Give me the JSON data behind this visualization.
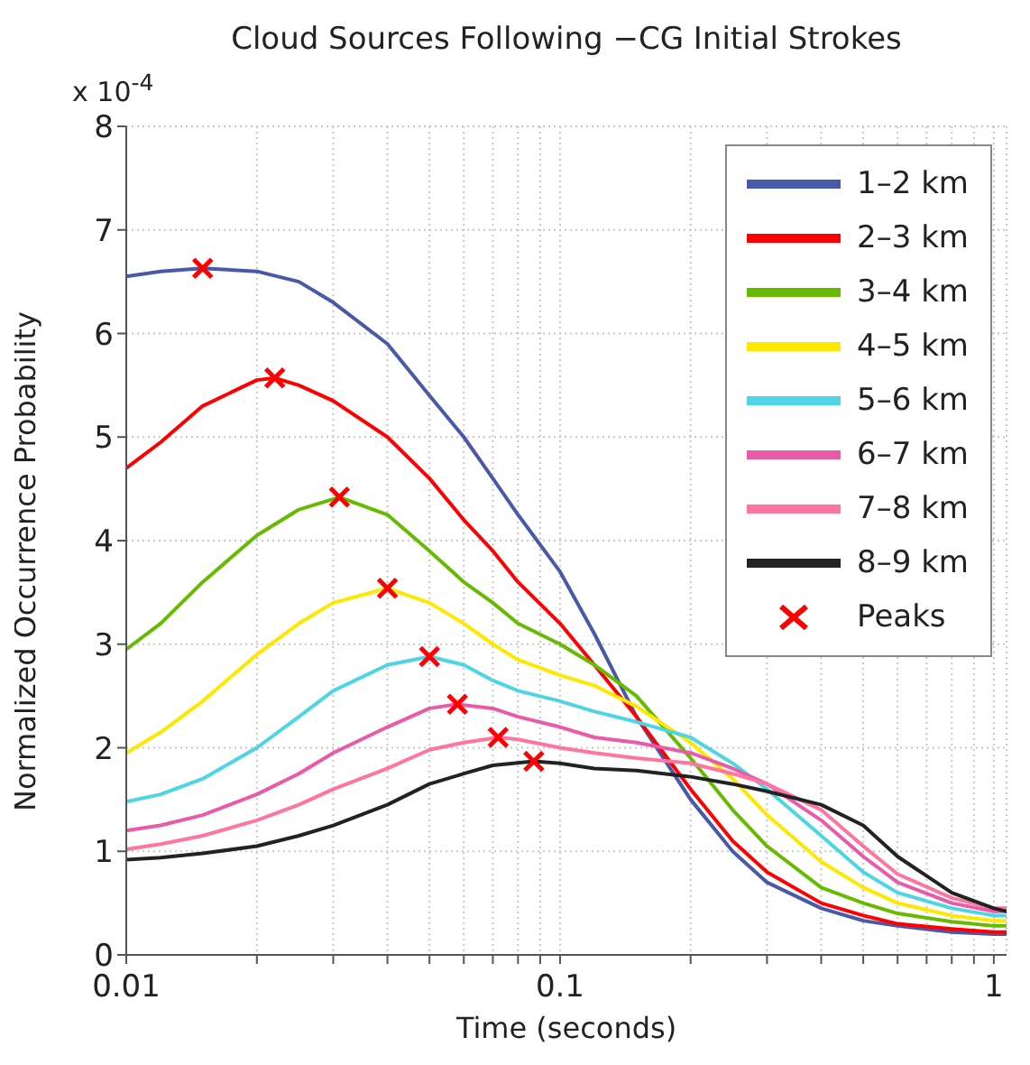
{
  "chart_data": {
    "type": "line",
    "title": "Cloud Sources Following −CG Initial Strokes",
    "xlabel": "Time (seconds)",
    "ylabel": "Normalized Occurrence Probability",
    "annotations": [
      "x 10$^{-4}$"
    ],
    "log": "x",
    "grid": true,
    "legend": "top right",
    "marker": "none",
    "line_style": "solid",
    "xlim": [
      0.01,
      1.07
    ],
    "xticks": [
      0.01,
      {
        "value": 0.02,
        "label": null
      },
      {
        "value": 0.03,
        "label": null
      },
      {
        "value": 0.04,
        "label": null
      },
      {
        "value": 0.05,
        "label": null
      },
      {
        "value": 0.06,
        "label": null
      },
      {
        "value": 0.07,
        "label": null
      },
      {
        "value": 0.08,
        "label": null
      },
      {
        "value": 0.09,
        "label": null
      },
      0.1,
      {
        "value": 0.2,
        "label": null
      },
      {
        "value": 0.3,
        "label": null
      },
      {
        "value": 0.4,
        "label": null
      },
      {
        "value": 0.5,
        "label": null
      },
      {
        "value": 0.6,
        "label": null
      },
      {
        "value": 0.7,
        "label": null
      },
      {
        "value": 0.8,
        "label": null
      },
      {
        "value": 0.9,
        "label": null
      },
      1
    ],
    "ylim": [
      0,
      8
    ],
    "yticks": [
      0,
      1,
      2,
      3,
      4,
      5,
      6,
      7,
      8
    ],
    "series": [
      {
        "name": "1–2 km",
        "color": "#4759a8",
        "x": [
          0.01,
          0.012,
          0.015,
          0.02,
          0.025,
          0.03,
          0.04,
          0.05,
          0.06,
          0.07,
          0.08,
          0.1,
          0.12,
          0.15,
          0.2,
          0.25,
          0.3,
          0.4,
          0.5,
          0.6,
          0.8,
          1.0,
          1.07
        ],
        "values": [
          6.55,
          6.6,
          6.63,
          6.6,
          6.5,
          6.3,
          5.9,
          5.4,
          5.0,
          4.6,
          4.25,
          3.7,
          3.1,
          2.3,
          1.5,
          1.0,
          0.7,
          0.45,
          0.33,
          0.28,
          0.22,
          0.2,
          0.2
        ]
      },
      {
        "name": "2–3 km",
        "color": "#ff0000",
        "x": [
          0.01,
          0.012,
          0.015,
          0.02,
          0.022,
          0.025,
          0.03,
          0.04,
          0.05,
          0.06,
          0.07,
          0.08,
          0.1,
          0.12,
          0.15,
          0.2,
          0.25,
          0.3,
          0.4,
          0.5,
          0.6,
          0.8,
          1.0,
          1.07
        ],
        "values": [
          4.7,
          4.95,
          5.3,
          5.55,
          5.57,
          5.5,
          5.35,
          5.0,
          4.6,
          4.2,
          3.9,
          3.6,
          3.2,
          2.8,
          2.3,
          1.6,
          1.1,
          0.8,
          0.5,
          0.38,
          0.3,
          0.25,
          0.22,
          0.22
        ]
      },
      {
        "name": "3–4 km",
        "color": "#66bb00",
        "x": [
          0.01,
          0.012,
          0.015,
          0.02,
          0.025,
          0.031,
          0.04,
          0.05,
          0.06,
          0.07,
          0.08,
          0.1,
          0.12,
          0.15,
          0.2,
          0.25,
          0.3,
          0.4,
          0.5,
          0.6,
          0.8,
          1.0,
          1.07
        ],
        "values": [
          2.95,
          3.2,
          3.6,
          4.05,
          4.3,
          4.42,
          4.25,
          3.9,
          3.6,
          3.4,
          3.2,
          3.0,
          2.8,
          2.5,
          1.9,
          1.4,
          1.05,
          0.65,
          0.5,
          0.4,
          0.32,
          0.28,
          0.28
        ]
      },
      {
        "name": "4–5 km",
        "color": "#ffe800",
        "x": [
          0.01,
          0.012,
          0.015,
          0.02,
          0.025,
          0.03,
          0.04,
          0.05,
          0.06,
          0.07,
          0.08,
          0.1,
          0.12,
          0.15,
          0.2,
          0.25,
          0.3,
          0.4,
          0.5,
          0.6,
          0.8,
          1.0,
          1.07
        ],
        "values": [
          1.95,
          2.15,
          2.45,
          2.9,
          3.2,
          3.4,
          3.54,
          3.4,
          3.2,
          3.0,
          2.85,
          2.7,
          2.6,
          2.4,
          2.05,
          1.7,
          1.35,
          0.9,
          0.65,
          0.5,
          0.38,
          0.33,
          0.33
        ]
      },
      {
        "name": "5–6 km",
        "color": "#4dd5e5",
        "x": [
          0.01,
          0.012,
          0.015,
          0.02,
          0.025,
          0.03,
          0.04,
          0.05,
          0.06,
          0.07,
          0.08,
          0.1,
          0.12,
          0.15,
          0.2,
          0.25,
          0.3,
          0.4,
          0.5,
          0.6,
          0.8,
          1.0,
          1.07
        ],
        "values": [
          1.48,
          1.55,
          1.7,
          2.0,
          2.3,
          2.55,
          2.8,
          2.88,
          2.8,
          2.65,
          2.55,
          2.45,
          2.35,
          2.25,
          2.1,
          1.85,
          1.6,
          1.15,
          0.8,
          0.6,
          0.45,
          0.38,
          0.38
        ]
      },
      {
        "name": "6–7 km",
        "color": "#e95aa8",
        "x": [
          0.01,
          0.012,
          0.015,
          0.02,
          0.025,
          0.03,
          0.04,
          0.05,
          0.058,
          0.07,
          0.08,
          0.1,
          0.12,
          0.15,
          0.2,
          0.25,
          0.3,
          0.4,
          0.5,
          0.6,
          0.8,
          1.0,
          1.07
        ],
        "values": [
          1.2,
          1.25,
          1.35,
          1.55,
          1.75,
          1.95,
          2.2,
          2.38,
          2.42,
          2.38,
          2.3,
          2.2,
          2.1,
          2.05,
          1.95,
          1.8,
          1.65,
          1.3,
          0.95,
          0.7,
          0.5,
          0.42,
          0.42
        ]
      },
      {
        "name": "7–8 km",
        "color": "#ff75a0",
        "x": [
          0.01,
          0.012,
          0.015,
          0.02,
          0.025,
          0.03,
          0.04,
          0.05,
          0.06,
          0.072,
          0.08,
          0.1,
          0.12,
          0.15,
          0.2,
          0.25,
          0.3,
          0.4,
          0.5,
          0.6,
          0.8,
          1.0,
          1.07
        ],
        "values": [
          1.02,
          1.07,
          1.15,
          1.3,
          1.45,
          1.6,
          1.8,
          1.98,
          2.05,
          2.1,
          2.08,
          2.0,
          1.95,
          1.9,
          1.85,
          1.75,
          1.65,
          1.4,
          1.05,
          0.78,
          0.55,
          0.45,
          0.45
        ]
      },
      {
        "name": "8–9 km",
        "color": "#222222",
        "x": [
          0.01,
          0.012,
          0.015,
          0.02,
          0.025,
          0.03,
          0.04,
          0.05,
          0.06,
          0.07,
          0.087,
          0.1,
          0.12,
          0.15,
          0.2,
          0.25,
          0.3,
          0.4,
          0.5,
          0.6,
          0.8,
          1.0,
          1.07
        ],
        "values": [
          0.92,
          0.94,
          0.98,
          1.05,
          1.15,
          1.25,
          1.45,
          1.65,
          1.75,
          1.83,
          1.87,
          1.85,
          1.8,
          1.78,
          1.72,
          1.65,
          1.58,
          1.45,
          1.25,
          0.95,
          0.6,
          0.45,
          0.42
        ]
      },
      {
        "name": "Peaks",
        "type": "scatter",
        "marker": "cross",
        "color": "#ff0000",
        "x": [
          0.015,
          0.022,
          0.031,
          0.04,
          0.05,
          0.058,
          0.072,
          0.087
        ],
        "values": [
          6.63,
          5.57,
          4.42,
          3.54,
          2.88,
          2.42,
          2.1,
          1.87
        ]
      }
    ]
  }
}
